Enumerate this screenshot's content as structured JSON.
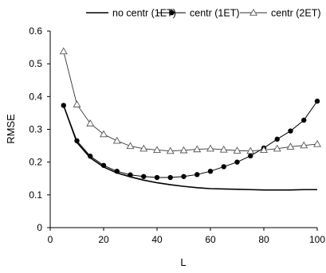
{
  "chart_data": {
    "type": "line",
    "title": "",
    "xlabel": "L",
    "ylabel": "RMSE",
    "xlim": [
      0,
      100
    ],
    "ylim": [
      0,
      0.6
    ],
    "xticks": [
      "0",
      "20",
      "40",
      "60",
      "80",
      "100"
    ],
    "yticks": [
      "0",
      "0.1",
      "0.2",
      "0.3",
      "0.4",
      "0.5",
      "0.6"
    ],
    "grid": false,
    "legend_position": "top",
    "x": [
      5,
      10,
      15,
      20,
      25,
      30,
      35,
      40,
      45,
      50,
      55,
      60,
      65,
      70,
      75,
      80,
      85,
      90,
      95,
      100
    ],
    "series": [
      {
        "name": "no centr (1ET)",
        "marker": "none",
        "values": [
          0.373,
          0.26,
          0.213,
          0.185,
          0.167,
          0.155,
          0.145,
          0.137,
          0.131,
          0.126,
          0.122,
          0.119,
          0.118,
          0.117,
          0.116,
          0.115,
          0.115,
          0.115,
          0.116,
          0.116
        ]
      },
      {
        "name": "centr (1ET)",
        "marker": "filled-circle",
        "values": [
          0.373,
          0.265,
          0.218,
          0.19,
          0.172,
          0.161,
          0.156,
          0.153,
          0.153,
          0.156,
          0.162,
          0.172,
          0.186,
          0.2,
          0.219,
          0.243,
          0.27,
          0.295,
          0.328,
          0.386
        ]
      },
      {
        "name": "centr (2ET)",
        "marker": "open-triangle",
        "values": [
          0.538,
          0.376,
          0.318,
          0.285,
          0.265,
          0.249,
          0.241,
          0.237,
          0.234,
          0.236,
          0.239,
          0.241,
          0.238,
          0.235,
          0.234,
          0.237,
          0.241,
          0.247,
          0.251,
          0.255
        ]
      }
    ]
  }
}
